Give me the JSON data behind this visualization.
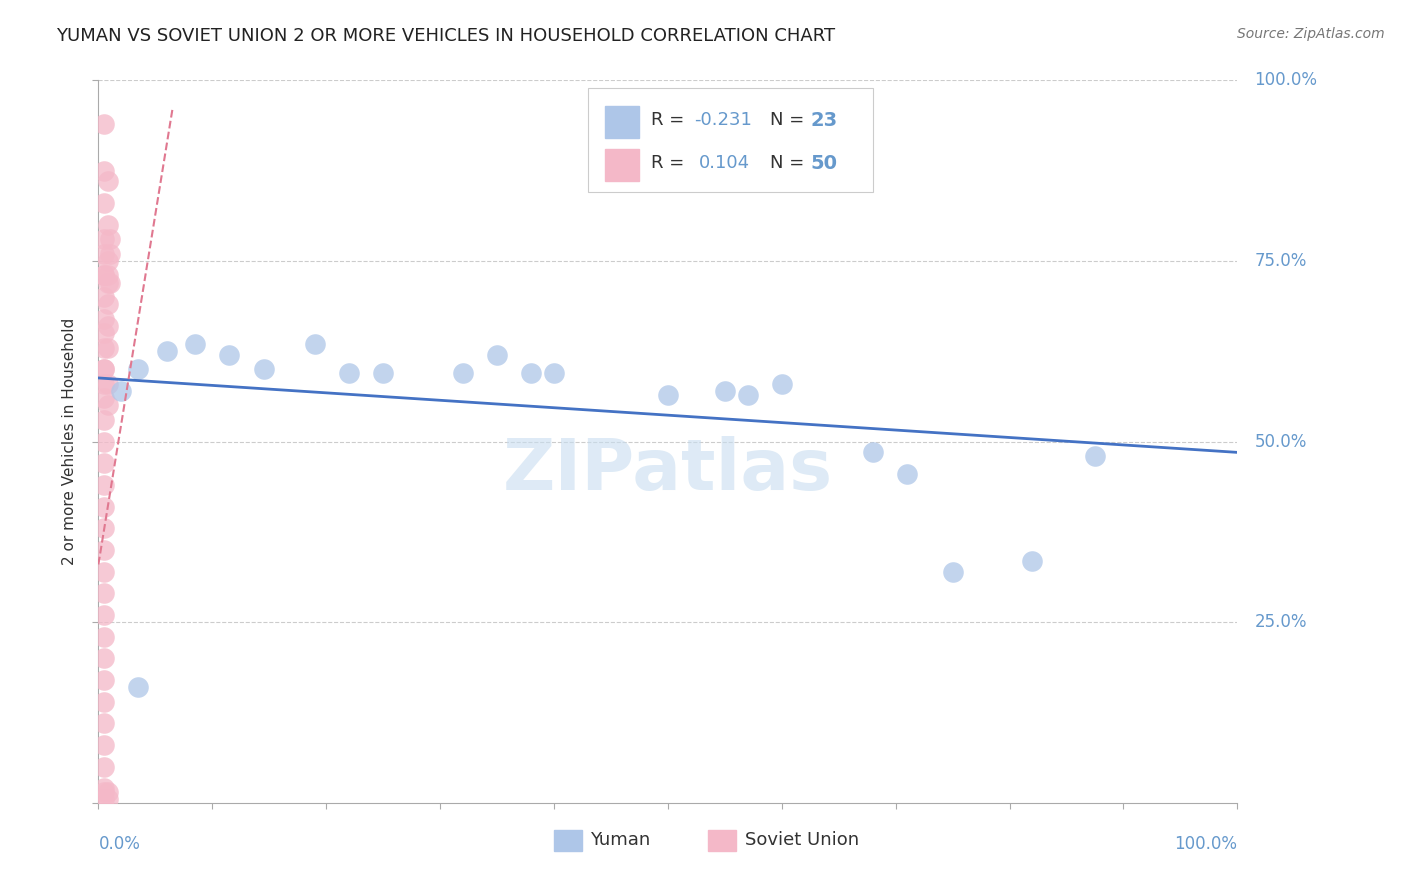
{
  "title": "YUMAN VS SOVIET UNION 2 OR MORE VEHICLES IN HOUSEHOLD CORRELATION CHART",
  "source": "Source: ZipAtlas.com",
  "ylabel": "2 or more Vehicles in Household",
  "xlim": [
    0.0,
    1.0
  ],
  "ylim": [
    0.0,
    1.0
  ],
  "blue_color": "#aec6e8",
  "pink_color": "#f4b8c8",
  "line_blue_color": "#4472c4",
  "line_pink_color": "#e07890",
  "label_color": "#6699cc",
  "text_color": "#333333",
  "grid_color": "#cccccc",
  "yuman_points": [
    [
      0.02,
      0.57
    ],
    [
      0.035,
      0.6
    ],
    [
      0.06,
      0.625
    ],
    [
      0.085,
      0.635
    ],
    [
      0.115,
      0.62
    ],
    [
      0.145,
      0.6
    ],
    [
      0.19,
      0.635
    ],
    [
      0.22,
      0.595
    ],
    [
      0.25,
      0.595
    ],
    [
      0.32,
      0.595
    ],
    [
      0.35,
      0.62
    ],
    [
      0.38,
      0.595
    ],
    [
      0.4,
      0.595
    ],
    [
      0.5,
      0.565
    ],
    [
      0.55,
      0.57
    ],
    [
      0.57,
      0.565
    ],
    [
      0.6,
      0.58
    ],
    [
      0.68,
      0.485
    ],
    [
      0.71,
      0.455
    ],
    [
      0.75,
      0.32
    ],
    [
      0.82,
      0.335
    ],
    [
      0.875,
      0.48
    ],
    [
      0.035,
      0.16
    ]
  ],
  "soviet_points": [
    [
      0.005,
      0.94
    ],
    [
      0.005,
      0.875
    ],
    [
      0.008,
      0.86
    ],
    [
      0.005,
      0.83
    ],
    [
      0.008,
      0.8
    ],
    [
      0.005,
      0.78
    ],
    [
      0.01,
      0.78
    ],
    [
      0.005,
      0.76
    ],
    [
      0.008,
      0.75
    ],
    [
      0.01,
      0.76
    ],
    [
      0.005,
      0.73
    ],
    [
      0.008,
      0.73
    ],
    [
      0.01,
      0.72
    ],
    [
      0.005,
      0.7
    ],
    [
      0.008,
      0.69
    ],
    [
      0.005,
      0.67
    ],
    [
      0.008,
      0.66
    ],
    [
      0.005,
      0.63
    ],
    [
      0.008,
      0.63
    ],
    [
      0.005,
      0.6
    ],
    [
      0.005,
      0.58
    ],
    [
      0.008,
      0.58
    ],
    [
      0.005,
      0.56
    ],
    [
      0.008,
      0.55
    ],
    [
      0.005,
      0.53
    ],
    [
      0.005,
      0.5
    ],
    [
      0.005,
      0.47
    ],
    [
      0.005,
      0.44
    ],
    [
      0.005,
      0.41
    ],
    [
      0.005,
      0.38
    ],
    [
      0.005,
      0.35
    ],
    [
      0.005,
      0.32
    ],
    [
      0.005,
      0.29
    ],
    [
      0.005,
      0.26
    ],
    [
      0.005,
      0.23
    ],
    [
      0.005,
      0.2
    ],
    [
      0.005,
      0.17
    ],
    [
      0.005,
      0.14
    ],
    [
      0.005,
      0.11
    ],
    [
      0.005,
      0.08
    ],
    [
      0.005,
      0.05
    ],
    [
      0.005,
      0.02
    ],
    [
      0.005,
      0.73
    ],
    [
      0.008,
      0.72
    ],
    [
      0.005,
      0.65
    ],
    [
      0.005,
      0.6
    ],
    [
      0.005,
      0.015
    ],
    [
      0.008,
      0.015
    ],
    [
      0.005,
      0.005
    ],
    [
      0.008,
      0.005
    ]
  ],
  "blue_line_x": [
    0.0,
    1.0
  ],
  "blue_line_y": [
    0.588,
    0.485
  ],
  "pink_line_x": [
    0.0,
    0.065
  ],
  "pink_line_y": [
    0.33,
    0.96
  ],
  "watermark": "ZIPatlas",
  "watermark_color": "#c8ddf0",
  "legend_r1_prefix": "R = ",
  "legend_r1_val": "-0.231",
  "legend_n1_prefix": "N = ",
  "legend_n1_val": "23",
  "legend_r2_prefix": "R =  ",
  "legend_r2_val": "0.104",
  "legend_n2_prefix": "N = ",
  "legend_n2_val": "50"
}
